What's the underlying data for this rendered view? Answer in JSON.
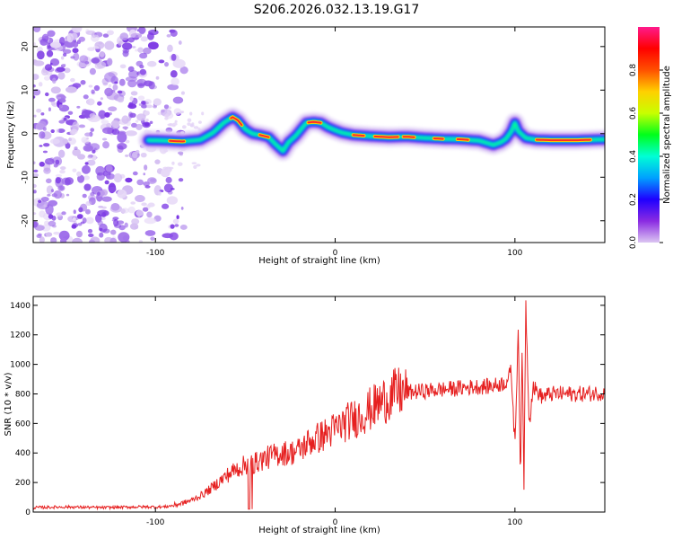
{
  "title": "S206.2026.032.13.19.G17",
  "chart_data": [
    {
      "type": "heatmap",
      "title": "S206.2026.032.13.19.G17",
      "xlabel": "Height of straight line (km)",
      "ylabel": "Frequency (Hz)",
      "xlim": [
        -168,
        150
      ],
      "ylim": [
        -25,
        24.5
      ],
      "xticks": [
        -100,
        0,
        100
      ],
      "yticks": [
        -20,
        -10,
        0,
        10,
        20
      ],
      "noise_region_x": [
        -168,
        -90
      ],
      "ridge": {
        "x": [
          -104,
          -95,
          -85,
          -75,
          -68,
          -62,
          -57,
          -54,
          -50,
          -46,
          -42,
          -37,
          -33,
          -29,
          -26,
          -22,
          -19,
          -16,
          -12,
          -8,
          -4,
          0,
          4,
          10,
          20,
          30,
          40,
          50,
          60,
          70,
          80,
          85,
          88,
          92,
          95,
          98,
          100,
          102,
          106,
          112,
          120,
          135,
          150
        ],
        "y": [
          -1.5,
          -1.6,
          -1.8,
          -1.4,
          0.2,
          2.5,
          3.8,
          3.0,
          1.0,
          0.0,
          -0.3,
          -0.8,
          -2.5,
          -4.0,
          -2.0,
          -0.5,
          1.0,
          2.5,
          2.7,
          2.5,
          1.5,
          0.8,
          0.2,
          -0.3,
          -0.6,
          -0.8,
          -0.7,
          -1.0,
          -1.2,
          -1.3,
          -1.6,
          -2.2,
          -2.6,
          -2.0,
          -1.2,
          0.5,
          2.5,
          0.5,
          -1.0,
          -1.4,
          -1.5,
          -1.5,
          -1.3
        ]
      },
      "colorbar": {
        "label": "Normalized spectral amplitude",
        "range": [
          0,
          1
        ],
        "ticks": [
          "0.0",
          "0.2",
          "0.4",
          "0.6",
          "0.8"
        ],
        "tick_values": [
          0,
          0.2,
          0.4,
          0.6,
          0.8
        ],
        "colormap": [
          "#dcc6f2",
          "#8a2be2",
          "#1f00ff",
          "#00a0ff",
          "#00ffd5",
          "#00ff1a",
          "#c8ff00",
          "#ffd000",
          "#ff5000",
          "#ff0000",
          "#ff1a8c"
        ]
      }
    },
    {
      "type": "line",
      "xlabel": "Height of straight line (km)",
      "ylabel": "SNR (10 * v/v)",
      "xlim": [
        -168,
        150
      ],
      "ylim": [
        0,
        1460
      ],
      "xticks": [
        -100,
        0,
        100
      ],
      "yticks": [
        0,
        200,
        400,
        600,
        800,
        1000,
        1200,
        1400
      ],
      "color": "#e62020",
      "series": [
        {
          "name": "SNR",
          "x": [
            -168,
            -150,
            -130,
            -110,
            -95,
            -90,
            -85,
            -80,
            -75,
            -70,
            -65,
            -60,
            -55,
            -50,
            -45,
            -40,
            -35,
            -30,
            -25,
            -20,
            -15,
            -10,
            -5,
            0,
            5,
            10,
            15,
            20,
            25,
            30,
            35,
            40,
            50,
            60,
            70,
            80,
            85,
            90,
            95,
            98,
            100,
            102,
            103,
            104,
            105,
            106,
            108,
            110,
            115,
            120,
            130,
            140,
            150
          ],
          "y": [
            30,
            35,
            30,
            35,
            35,
            45,
            60,
            80,
            110,
            150,
            200,
            250,
            290,
            320,
            330,
            360,
            380,
            400,
            400,
            420,
            470,
            500,
            530,
            560,
            600,
            630,
            660,
            700,
            740,
            780,
            810,
            810,
            820,
            830,
            840,
            850,
            850,
            860,
            880,
            950,
            450,
            1300,
            150,
            1100,
            200,
            1420,
            600,
            850,
            780,
            800,
            800,
            800,
            810
          ]
        }
      ]
    }
  ]
}
